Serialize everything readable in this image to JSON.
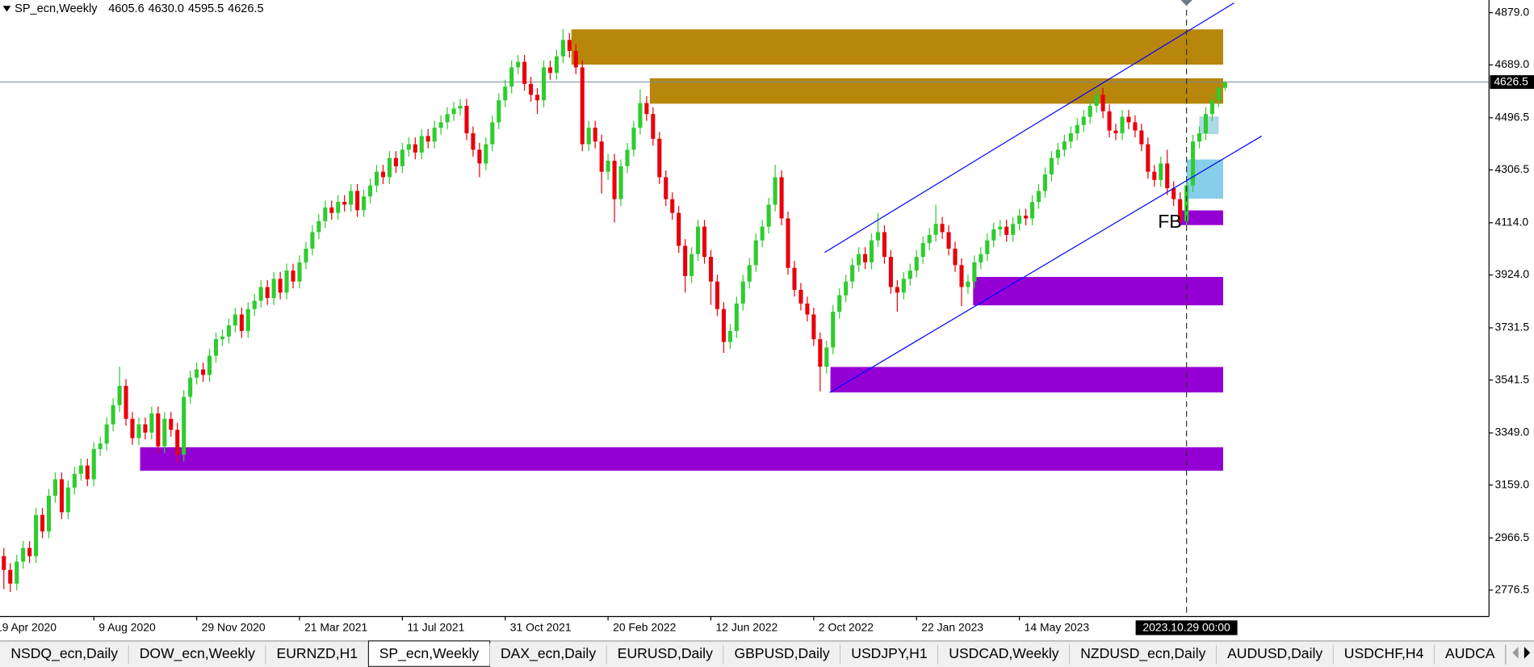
{
  "header": {
    "symbol": "SP_ecn,Weekly",
    "ohlc": [
      "4605.6",
      "4630.0",
      "4595.5",
      "4626.5"
    ]
  },
  "chart_data": {
    "type": "candlestick",
    "colors": {
      "up": "#2ecc2e",
      "down": "#e8000b"
    },
    "xlim": [
      -0.6,
      231.06
    ],
    "ylim": [
      2680.3,
      4925.3
    ],
    "yticks": [
      {
        "value": 4879,
        "label": "4879.0"
      },
      {
        "value": 4689,
        "label": "4689.0"
      },
      {
        "value": 4496.5,
        "label": "4496.5"
      },
      {
        "value": 4306.5,
        "label": "4306.5"
      },
      {
        "value": 4114,
        "label": "4114.0"
      },
      {
        "value": 3924,
        "label": "3924.0"
      },
      {
        "value": 3731.5,
        "label": "3731.5"
      },
      {
        "value": 3541.5,
        "label": "3541.5"
      },
      {
        "value": 3349,
        "label": "3349.0"
      },
      {
        "value": 3159,
        "label": "3159.0"
      },
      {
        "value": 2966.5,
        "label": "2966.5"
      },
      {
        "value": 2776.5,
        "label": "2776.5"
      }
    ],
    "xticks": [
      {
        "value": -2,
        "label": "19 Apr 2020"
      },
      {
        "value": 14,
        "label": "9 Aug 2020"
      },
      {
        "value": 30,
        "label": "29 Nov 2020"
      },
      {
        "value": 46,
        "label": "21 Mar 2021"
      },
      {
        "value": 62,
        "label": "11 Jul 2021"
      },
      {
        "value": 78,
        "label": "31 Oct 2021"
      },
      {
        "value": 94,
        "label": "20 Feb 2022"
      },
      {
        "value": 110,
        "label": "12 Jun 2022"
      },
      {
        "value": 126,
        "label": "2 Oct 2022"
      },
      {
        "value": 142,
        "label": "22 Jan 2023"
      },
      {
        "value": 158,
        "label": "14 May 2023"
      }
    ],
    "crosshair": {
      "x": 184,
      "label": "2023.10.29 00:00"
    },
    "candles": [
      [
        2900,
        2930,
        2780,
        2850
      ],
      [
        2850,
        2875,
        2770,
        2800
      ],
      [
        2800,
        2905,
        2775,
        2880
      ],
      [
        2880,
        2955,
        2855,
        2930
      ],
      [
        2930,
        2955,
        2875,
        2900
      ],
      [
        2900,
        3075,
        2875,
        3050
      ],
      [
        3050,
        3075,
        2965,
        2990
      ],
      [
        2990,
        3145,
        2965,
        3120
      ],
      [
        3120,
        3205,
        3095,
        3180
      ],
      [
        3180,
        3205,
        3035,
        3060
      ],
      [
        3060,
        3175,
        3035,
        3150
      ],
      [
        3150,
        3225,
        3125,
        3200
      ],
      [
        3200,
        3255,
        3175,
        3230
      ],
      [
        3230,
        3255,
        3155,
        3180
      ],
      [
        3180,
        3315,
        3155,
        3290
      ],
      [
        3290,
        3335,
        3265,
        3310
      ],
      [
        3310,
        3405,
        3285,
        3380
      ],
      [
        3380,
        3475,
        3355,
        3450
      ],
      [
        3450,
        3590,
        3425,
        3520
      ],
      [
        3520,
        3545,
        3375,
        3400
      ],
      [
        3400,
        3425,
        3305,
        3330
      ],
      [
        3330,
        3405,
        3305,
        3380
      ],
      [
        3380,
        3405,
        3325,
        3350
      ],
      [
        3350,
        3445,
        3325,
        3420
      ],
      [
        3420,
        3445,
        3275,
        3300
      ],
      [
        3300,
        3425,
        3275,
        3400
      ],
      [
        3400,
        3425,
        3335,
        3360
      ],
      [
        3360,
        3385,
        3240,
        3270
      ],
      [
        3270,
        3505,
        3245,
        3480
      ],
      [
        3480,
        3575,
        3455,
        3550
      ],
      [
        3550,
        3605,
        3525,
        3580
      ],
      [
        3580,
        3605,
        3535,
        3560
      ],
      [
        3560,
        3655,
        3535,
        3630
      ],
      [
        3630,
        3715,
        3605,
        3690
      ],
      [
        3690,
        3725,
        3665,
        3700
      ],
      [
        3700,
        3765,
        3675,
        3740
      ],
      [
        3740,
        3805,
        3715,
        3780
      ],
      [
        3780,
        3805,
        3695,
        3720
      ],
      [
        3720,
        3825,
        3695,
        3800
      ],
      [
        3800,
        3855,
        3775,
        3830
      ],
      [
        3830,
        3905,
        3805,
        3880
      ],
      [
        3880,
        3905,
        3815,
        3840
      ],
      [
        3840,
        3935,
        3815,
        3910
      ],
      [
        3910,
        3935,
        3835,
        3860
      ],
      [
        3860,
        3965,
        3835,
        3940
      ],
      [
        3940,
        3965,
        3875,
        3900
      ],
      [
        3900,
        3995,
        3875,
        3970
      ],
      [
        3970,
        4045,
        3945,
        4020
      ],
      [
        4020,
        4105,
        3995,
        4080
      ],
      [
        4080,
        4145,
        4055,
        4120
      ],
      [
        4120,
        4195,
        4095,
        4170
      ],
      [
        4170,
        4195,
        4125,
        4150
      ],
      [
        4150,
        4215,
        4125,
        4190
      ],
      [
        4190,
        4215,
        4155,
        4180
      ],
      [
        4180,
        4255,
        4155,
        4230
      ],
      [
        4230,
        4255,
        4135,
        4160
      ],
      [
        4160,
        4235,
        4135,
        4210
      ],
      [
        4210,
        4275,
        4185,
        4250
      ],
      [
        4250,
        4325,
        4225,
        4300
      ],
      [
        4300,
        4325,
        4255,
        4280
      ],
      [
        4280,
        4375,
        4255,
        4350
      ],
      [
        4350,
        4375,
        4295,
        4320
      ],
      [
        4320,
        4405,
        4295,
        4380
      ],
      [
        4380,
        4425,
        4355,
        4400
      ],
      [
        4400,
        4425,
        4345,
        4370
      ],
      [
        4370,
        4455,
        4345,
        4430
      ],
      [
        4430,
        4455,
        4385,
        4410
      ],
      [
        4410,
        4485,
        4385,
        4460
      ],
      [
        4460,
        4505,
        4435,
        4480
      ],
      [
        4480,
        4535,
        4455,
        4510
      ],
      [
        4510,
        4555,
        4485,
        4530
      ],
      [
        4530,
        4565,
        4505,
        4540
      ],
      [
        4540,
        4565,
        4415,
        4440
      ],
      [
        4440,
        4465,
        4355,
        4380
      ],
      [
        4380,
        4405,
        4280,
        4330
      ],
      [
        4330,
        4425,
        4305,
        4400
      ],
      [
        4400,
        4505,
        4375,
        4480
      ],
      [
        4480,
        4585,
        4455,
        4560
      ],
      [
        4560,
        4635,
        4535,
        4610
      ],
      [
        4610,
        4705,
        4585,
        4680
      ],
      [
        4680,
        4725,
        4655,
        4700
      ],
      [
        4700,
        4725,
        4595,
        4620
      ],
      [
        4620,
        4645,
        4555,
        4580
      ],
      [
        4580,
        4605,
        4510,
        4560
      ],
      [
        4560,
        4705,
        4535,
        4680
      ],
      [
        4680,
        4705,
        4635,
        4660
      ],
      [
        4660,
        4745,
        4635,
        4720
      ],
      [
        4720,
        4820,
        4695,
        4780
      ],
      [
        4780,
        4805,
        4715,
        4740
      ],
      [
        4740,
        4765,
        4655,
        4680
      ],
      [
        4680,
        4705,
        4375,
        4400
      ],
      [
        4400,
        4485,
        4375,
        4460
      ],
      [
        4460,
        4485,
        4385,
        4410
      ],
      [
        4410,
        4435,
        4220,
        4300
      ],
      [
        4300,
        4365,
        4270,
        4340
      ],
      [
        4340,
        4365,
        4115,
        4200
      ],
      [
        4200,
        4345,
        4175,
        4320
      ],
      [
        4320,
        4405,
        4295,
        4380
      ],
      [
        4380,
        4485,
        4355,
        4460
      ],
      [
        4460,
        4600,
        4435,
        4550
      ],
      [
        4550,
        4575,
        4485,
        4510
      ],
      [
        4510,
        4535,
        4395,
        4420
      ],
      [
        4420,
        4445,
        4255,
        4280
      ],
      [
        4280,
        4305,
        4175,
        4200
      ],
      [
        4200,
        4225,
        4125,
        4150
      ],
      [
        4150,
        4175,
        4005,
        4030
      ],
      [
        4030,
        4055,
        3860,
        3920
      ],
      [
        3920,
        4025,
        3895,
        4000
      ],
      [
        4000,
        4125,
        3975,
        4100
      ],
      [
        4100,
        4125,
        3965,
        3990
      ],
      [
        3990,
        4015,
        3815,
        3900
      ],
      [
        3900,
        3925,
        3775,
        3800
      ],
      [
        3800,
        3825,
        3640,
        3680
      ],
      [
        3680,
        3745,
        3655,
        3720
      ],
      [
        3720,
        3845,
        3695,
        3820
      ],
      [
        3820,
        3925,
        3795,
        3900
      ],
      [
        3900,
        3985,
        3875,
        3960
      ],
      [
        3960,
        4075,
        3935,
        4050
      ],
      [
        4050,
        4125,
        4025,
        4100
      ],
      [
        4100,
        4205,
        4075,
        4180
      ],
      [
        4180,
        4325,
        4155,
        4280
      ],
      [
        4280,
        4305,
        4105,
        4130
      ],
      [
        4130,
        4155,
        3925,
        3950
      ],
      [
        3950,
        3975,
        3845,
        3870
      ],
      [
        3870,
        3895,
        3795,
        3820
      ],
      [
        3820,
        3845,
        3755,
        3780
      ],
      [
        3780,
        3805,
        3665,
        3690
      ],
      [
        3690,
        3715,
        3500,
        3590
      ],
      [
        3590,
        3685,
        3565,
        3660
      ],
      [
        3660,
        3815,
        3635,
        3790
      ],
      [
        3790,
        3875,
        3765,
        3850
      ],
      [
        3850,
        3925,
        3825,
        3900
      ],
      [
        3900,
        3985,
        3875,
        3960
      ],
      [
        3960,
        4025,
        3935,
        4000
      ],
      [
        4000,
        4025,
        3945,
        3970
      ],
      [
        3970,
        4075,
        3945,
        4050
      ],
      [
        4050,
        4150,
        4025,
        4080
      ],
      [
        4080,
        4105,
        3965,
        3990
      ],
      [
        3990,
        4015,
        3855,
        3880
      ],
      [
        3880,
        3905,
        3790,
        3860
      ],
      [
        3860,
        3935,
        3835,
        3910
      ],
      [
        3910,
        3965,
        3885,
        3940
      ],
      [
        3940,
        4015,
        3915,
        3990
      ],
      [
        3990,
        4065,
        3965,
        4040
      ],
      [
        4040,
        4095,
        4015,
        4070
      ],
      [
        4070,
        4180,
        4045,
        4110
      ],
      [
        4110,
        4135,
        4055,
        4080
      ],
      [
        4080,
        4105,
        3995,
        4020
      ],
      [
        4020,
        4045,
        3935,
        3960
      ],
      [
        3960,
        3985,
        3810,
        3880
      ],
      [
        3880,
        3925,
        3855,
        3900
      ],
      [
        3900,
        3995,
        3875,
        3970
      ],
      [
        3970,
        4025,
        3945,
        4000
      ],
      [
        4000,
        4075,
        3975,
        4050
      ],
      [
        4050,
        4115,
        4025,
        4090
      ],
      [
        4090,
        4125,
        4065,
        4100
      ],
      [
        4100,
        4125,
        4045,
        4070
      ],
      [
        4070,
        4135,
        4045,
        4110
      ],
      [
        4110,
        4165,
        4085,
        4140
      ],
      [
        4140,
        4165,
        4105,
        4130
      ],
      [
        4130,
        4215,
        4105,
        4190
      ],
      [
        4190,
        4255,
        4165,
        4230
      ],
      [
        4230,
        4315,
        4205,
        4290
      ],
      [
        4290,
        4375,
        4265,
        4350
      ],
      [
        4350,
        4405,
        4325,
        4380
      ],
      [
        4380,
        4435,
        4355,
        4410
      ],
      [
        4410,
        4465,
        4385,
        4440
      ],
      [
        4440,
        4495,
        4415,
        4470
      ],
      [
        4470,
        4525,
        4445,
        4500
      ],
      [
        4500,
        4565,
        4475,
        4540
      ],
      [
        4540,
        4605,
        4515,
        4580
      ],
      [
        4580,
        4605,
        4495,
        4520
      ],
      [
        4520,
        4545,
        4425,
        4450
      ],
      [
        4450,
        4475,
        4415,
        4440
      ],
      [
        4440,
        4525,
        4415,
        4500
      ],
      [
        4500,
        4525,
        4455,
        4480
      ],
      [
        4480,
        4505,
        4425,
        4450
      ],
      [
        4450,
        4475,
        4375,
        4400
      ],
      [
        4400,
        4425,
        4275,
        4300
      ],
      [
        4300,
        4325,
        4245,
        4270
      ],
      [
        4270,
        4355,
        4245,
        4330
      ],
      [
        4330,
        4380,
        4215,
        4240
      ],
      [
        4240,
        4265,
        4175,
        4200
      ],
      [
        4200,
        4225,
        4100,
        4120
      ],
      [
        4120,
        4275,
        4095,
        4250
      ],
      [
        4250,
        4435,
        4225,
        4410
      ],
      [
        4410,
        4465,
        4385,
        4440
      ],
      [
        4440,
        4535,
        4415,
        4510
      ],
      [
        4510,
        4585,
        4485,
        4560
      ],
      [
        4560,
        4610,
        4535,
        4605.6
      ],
      [
        4605.6,
        4630,
        4595.5,
        4626.5
      ]
    ],
    "zones": [
      {
        "x1": 88.3,
        "x2": 189.7,
        "y1": 4818.4,
        "y2": 4690.1,
        "color": "#b8860b"
      },
      {
        "x1": 100.5,
        "x2": 189.7,
        "y1": 4640.2,
        "y2": 4547.6,
        "color": "#b8860b"
      },
      {
        "x1": 21.2,
        "x2": 189.7,
        "y1": 3296.7,
        "y2": 3211.2,
        "color": "#9400d3"
      },
      {
        "x1": 128.6,
        "x2": 189.7,
        "y1": 3589,
        "y2": 3496.3,
        "color": "#9400d3"
      },
      {
        "x1": 150.8,
        "x2": 189.7,
        "y1": 3916.8,
        "y2": 3813.4,
        "color": "#9400d3"
      },
      {
        "x1": 182.8,
        "x2": 189.7,
        "y1": 4159.1,
        "y2": 4105.7,
        "color": "#9400d3"
      },
      {
        "x1": 186,
        "x2": 189,
        "y1": 4501.2,
        "y2": 4437.1,
        "color": "#add8e6"
      },
      {
        "x1": 184,
        "x2": 189.7,
        "y1": 4344.4,
        "y2": 4201.9,
        "color": "#87ceeb"
      }
    ],
    "lines": [
      {
        "x1": 127.7,
        "y1": 4005.9,
        "x2": 191.4,
        "y2": 4914.6,
        "color": "#0000ff"
      },
      {
        "x1": 128.5,
        "y1": 3496.3,
        "x2": 195.7,
        "y2": 4430,
        "color": "#0000ff"
      }
    ],
    "annotations": [
      {
        "text": "FB",
        "x": 181.4,
        "y": 4114
      }
    ]
  },
  "tabs": {
    "active": 3,
    "items": [
      "NSDQ_ecn,Daily",
      "DOW_ecn,Weekly",
      "EURNZD,H1",
      "SP_ecn,Weekly",
      "DAX_ecn,Daily",
      "EURUSD,Daily",
      "GBPUSD,Daily",
      "USDJPY,H1",
      "USDCAD,Weekly",
      "NZDUSD_ecn,Daily",
      "AUDUSD,Daily",
      "USDCHF,H4",
      "AUDCA"
    ]
  }
}
